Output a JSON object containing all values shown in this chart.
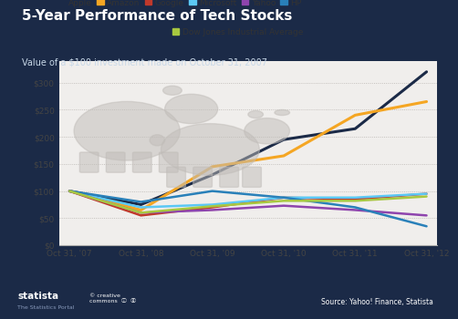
{
  "title": "5-Year Performance of Tech Stocks",
  "subtitle": "Value of a $100 investment made on October 31, 2007",
  "x_labels": [
    "Oct 31, '07",
    "Oct 31, '08",
    "Oct 31, '09",
    "Oct 31, '10",
    "Oct 31, '11",
    "Oct 31, '12"
  ],
  "series": {
    "Apple": [
      100,
      75,
      130,
      195,
      215,
      320
    ],
    "Amazon": [
      100,
      65,
      145,
      165,
      240,
      265
    ],
    "Google": [
      100,
      55,
      70,
      88,
      85,
      95
    ],
    "Microsoft": [
      100,
      70,
      75,
      88,
      88,
      95
    ],
    "Yahoo": [
      100,
      60,
      65,
      73,
      65,
      55
    ],
    "HP": [
      100,
      80,
      100,
      88,
      70,
      35
    ],
    "Dow Jones Industrial Average": [
      100,
      60,
      72,
      82,
      82,
      90
    ]
  },
  "colors": {
    "Apple": "#1b2a47",
    "Amazon": "#f5a623",
    "Google": "#c0392b",
    "Microsoft": "#5bc8f5",
    "Yahoo": "#8e44ad",
    "HP": "#2980b9",
    "Dow Jones Industrial Average": "#a8c840"
  },
  "linewidths": {
    "Apple": 2.2,
    "Amazon": 2.2,
    "Google": 1.8,
    "Microsoft": 1.8,
    "Yahoo": 1.8,
    "HP": 1.8,
    "Dow Jones Industrial Average": 1.8
  },
  "ylim": [
    0,
    340
  ],
  "yticks": [
    0,
    50,
    100,
    150,
    200,
    250,
    300
  ],
  "ytick_labels": [
    "$0",
    "$50",
    "$100",
    "$150",
    "$200",
    "$250",
    "$300"
  ],
  "bg_dark": "#1b2a47",
  "bg_plot": "#f0eeec",
  "bg_legend_area": "#e8e6e4"
}
